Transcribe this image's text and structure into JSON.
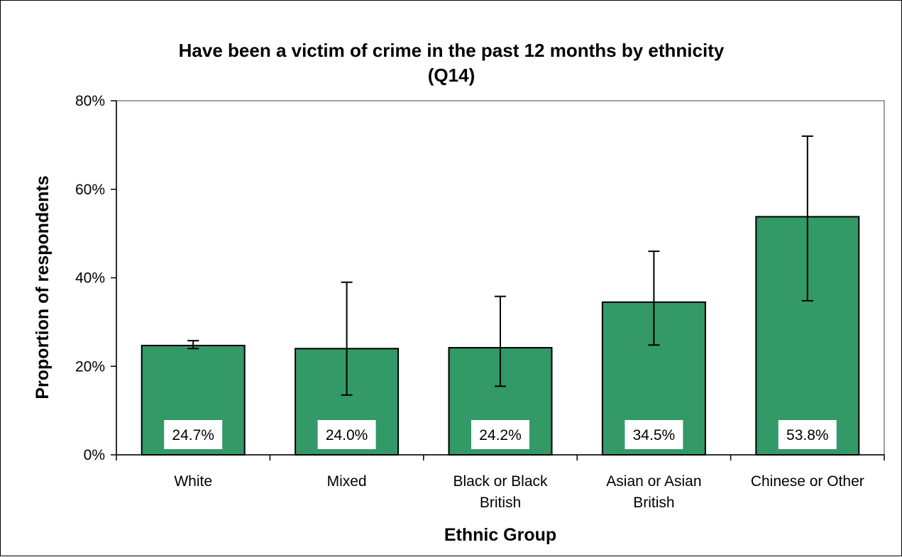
{
  "chart_data": {
    "type": "bar",
    "title_lines": [
      "Have been a victim of crime in the past 12 months by ethnicity",
      "(Q14)"
    ],
    "xlabel": "Ethnic Group",
    "ylabel": "Proportion of respondents",
    "categories": [
      [
        "White"
      ],
      [
        "Mixed"
      ],
      [
        "Black or Black",
        "British"
      ],
      [
        "Asian or Asian",
        "British"
      ],
      [
        "Chinese or Other"
      ]
    ],
    "values": [
      24.7,
      24.0,
      24.2,
      34.5,
      53.8
    ],
    "data_labels": [
      "24.7%",
      "24.0%",
      "24.2%",
      "34.5%",
      "53.8%"
    ],
    "error_bars": [
      {
        "low": 24.0,
        "high": 25.8
      },
      {
        "low": 13.5,
        "high": 39.0
      },
      {
        "low": 15.5,
        "high": 35.8
      },
      {
        "low": 24.8,
        "high": 46.0
      },
      {
        "low": 34.8,
        "high": 72.0
      }
    ],
    "ylim": [
      0,
      80
    ],
    "yticks": [
      0,
      20,
      40,
      60,
      80
    ],
    "ytick_labels": [
      "0%",
      "20%",
      "40%",
      "60%",
      "80%"
    ],
    "grid": false,
    "colors": {
      "bar": "#339966",
      "bar_stroke": "#000000",
      "plot_border": "#808080",
      "axis": "#000000"
    }
  }
}
